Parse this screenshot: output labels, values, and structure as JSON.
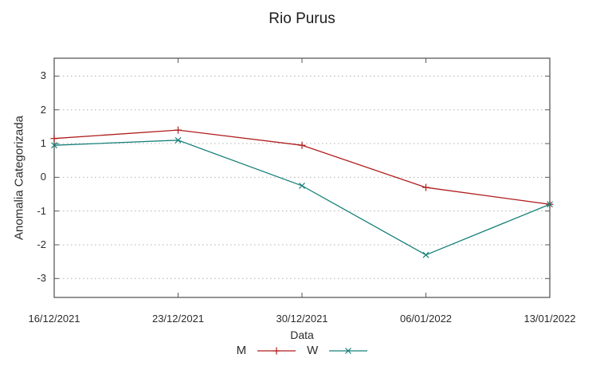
{
  "title": "Rio Purus",
  "chart_data": {
    "type": "line",
    "title": "Rio Purus",
    "xlabel": "Data",
    "ylabel": "Anomalia Categorizada",
    "categories": [
      "16/12/2021",
      "23/12/2021",
      "30/12/2021",
      "06/01/2022",
      "13/01/2022"
    ],
    "series": [
      {
        "name": "M",
        "marker": "plus",
        "color": "#b01c1c",
        "values": [
          1.15,
          1.4,
          0.95,
          -0.3,
          -0.8
        ]
      },
      {
        "name": "W",
        "marker": "cross",
        "color": "#17807a",
        "values": [
          0.95,
          1.1,
          -0.25,
          -2.3,
          -0.8
        ]
      }
    ],
    "y_ticks": [
      3,
      2,
      1,
      0,
      -1,
      -2,
      -3
    ],
    "ylim": [
      -3.56,
      3.53
    ],
    "grid": "horizontal-dotted",
    "legend_position": "bottom-center"
  },
  "colors": {
    "axis": "#5a5a5a",
    "grid": "#b0b0b0",
    "text": "#2b2b2b",
    "series_m": "#b01c1c",
    "series_w": "#17807a",
    "background": "#ffffff"
  }
}
